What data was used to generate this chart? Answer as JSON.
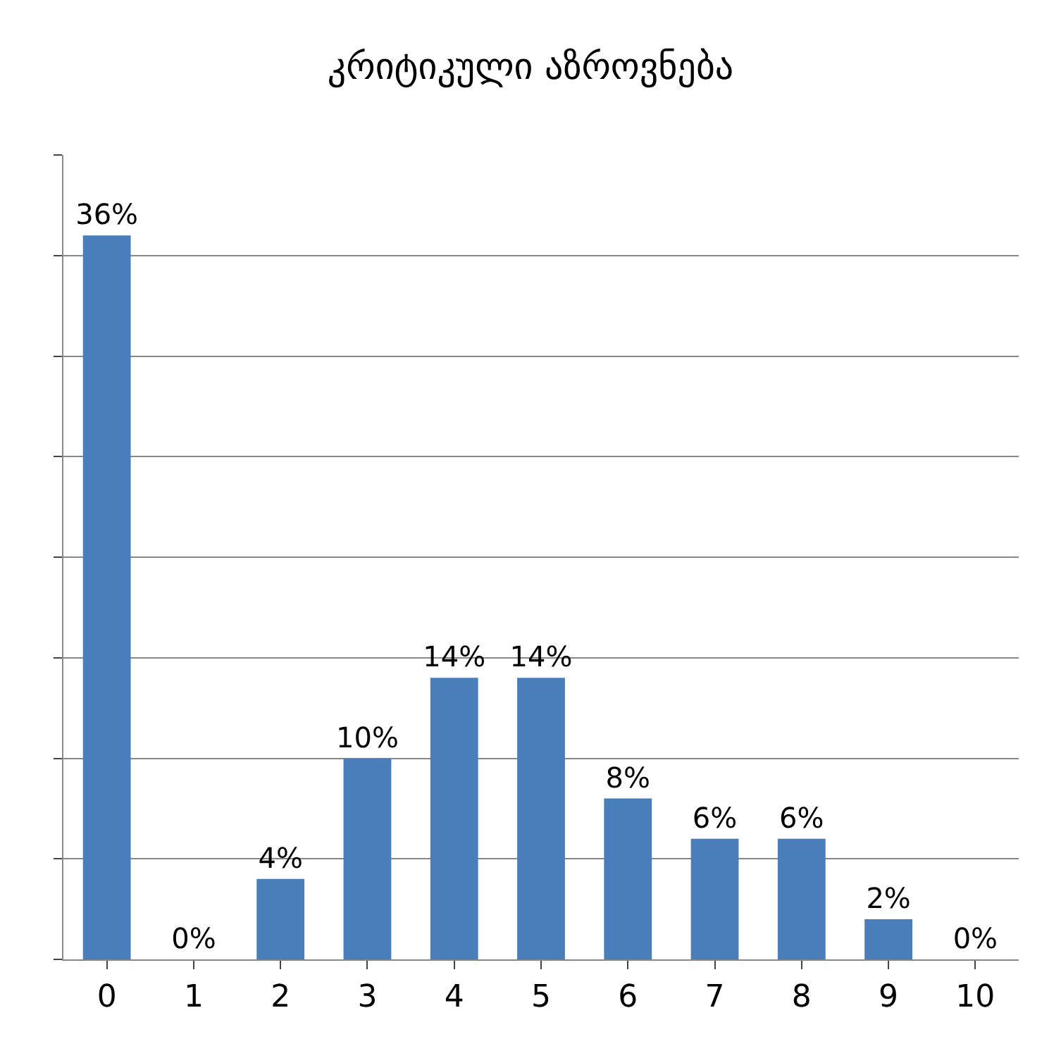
{
  "chart_data": {
    "type": "bar",
    "title": "კრიტიკული აზროვნება",
    "categories": [
      "0",
      "1",
      "2",
      "3",
      "4",
      "5",
      "6",
      "7",
      "8",
      "9",
      "10"
    ],
    "values": [
      36,
      0,
      4,
      10,
      14,
      14,
      8,
      6,
      6,
      2,
      0
    ],
    "value_labels": [
      "36%",
      "0%",
      "4%",
      "10%",
      "14%",
      "14%",
      "8%",
      "6%",
      "6%",
      "2%",
      "0%"
    ],
    "color": "#4a7ebb",
    "ylim": [
      0,
      40
    ],
    "yticks": [
      {
        "value": 0,
        "label": null
      },
      {
        "value": 5,
        "label": null
      },
      {
        "value": 10,
        "label": null
      },
      {
        "value": 15,
        "label": null
      },
      {
        "value": 20,
        "label": null
      },
      {
        "value": 25,
        "label": null
      },
      {
        "value": 30,
        "label": null
      },
      {
        "value": 35,
        "label": null
      },
      {
        "value": 40,
        "label": null
      }
    ],
    "grid": "y",
    "tick_labels": "x"
  }
}
